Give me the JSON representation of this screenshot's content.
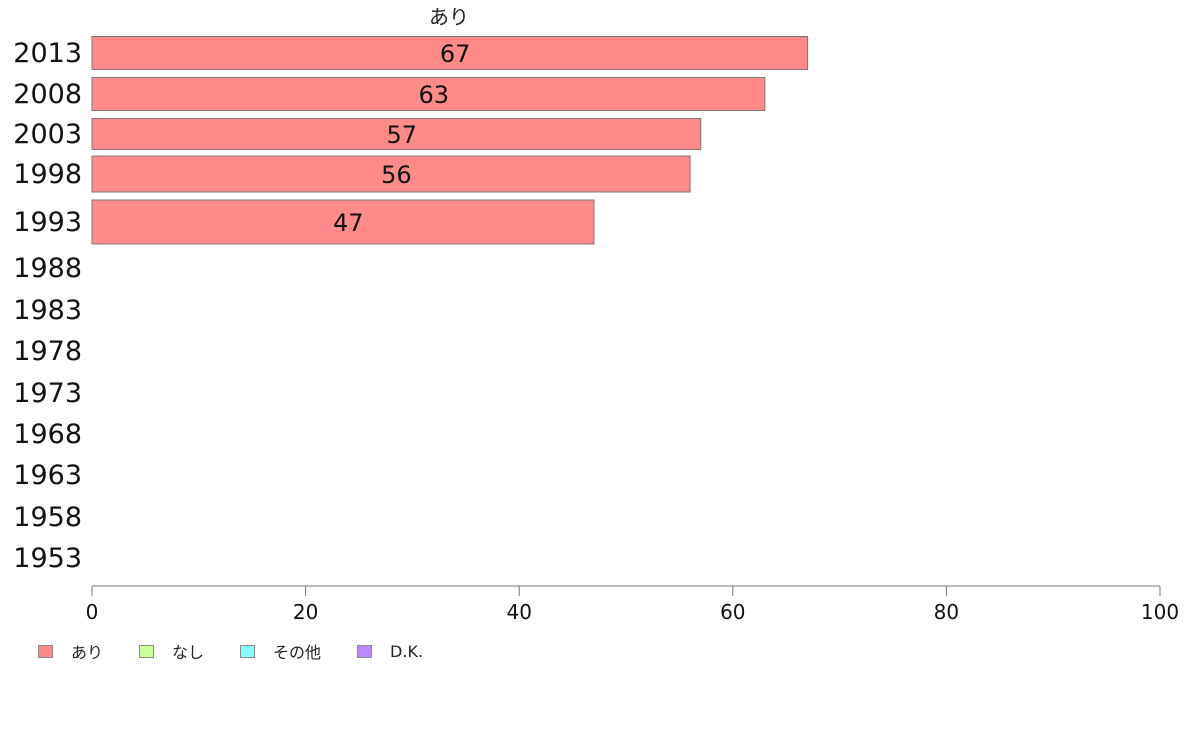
{
  "chart_data": {
    "type": "bar",
    "orientation": "horizontal",
    "title": "あり",
    "categories": [
      "2013",
      "2008",
      "2003",
      "1998",
      "1993",
      "1988",
      "1983",
      "1978",
      "1973",
      "1968",
      "1963",
      "1958",
      "1953"
    ],
    "series": [
      {
        "name": "あり",
        "color": "#ff8a8a",
        "values": [
          67,
          63,
          57,
          56,
          47,
          null,
          null,
          null,
          null,
          null,
          null,
          null,
          null
        ]
      }
    ],
    "data_labels": [
      "67",
      "63",
      "57",
      "56",
      "47",
      "",
      "",
      "",
      "",
      "",
      "",
      "",
      ""
    ],
    "xlim": [
      0,
      100
    ],
    "xticks": [
      0,
      20,
      40,
      60,
      80,
      100
    ],
    "xlabel": "",
    "ylabel": "",
    "grid": false,
    "legend": [
      {
        "label": "あり",
        "color": "#ff8a8a"
      },
      {
        "label": "なし",
        "color": "#ccff99"
      },
      {
        "label": "その他",
        "color": "#88ffff"
      },
      {
        "label": "D.K.",
        "color": "#bb88ff"
      }
    ],
    "legend_position": "bottom-left"
  }
}
